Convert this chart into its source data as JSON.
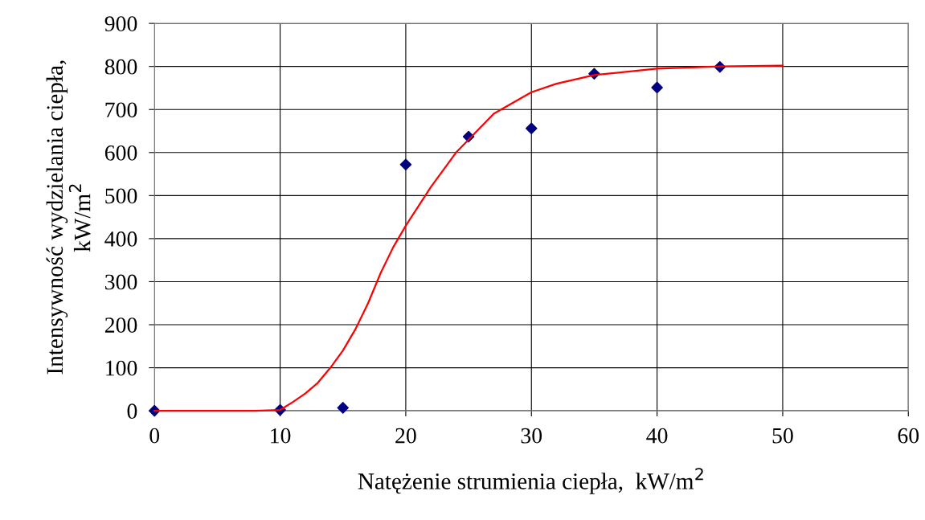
{
  "chart_data": {
    "type": "scatter",
    "xlabel": "Natężenie strumienia ciepła,  kW/m$^{2}$",
    "ylabel": "Intensywność wydzielania ciepła,\nkW/m$^{2}$",
    "xlim": [
      0,
      60
    ],
    "xticks": [
      0,
      10,
      20,
      30,
      40,
      50,
      60
    ],
    "ylim": [
      0,
      900
    ],
    "yticks": [
      0,
      100,
      200,
      300,
      400,
      500,
      600,
      700,
      800,
      900
    ],
    "grid": true,
    "marker": "diamond",
    "series": [
      {
        "color": "#000080",
        "x": [
          0,
          10,
          15,
          20,
          25,
          30,
          35,
          40,
          45
        ],
        "values": [
          0,
          2,
          7,
          572,
          637,
          656,
          783,
          751,
          799
        ]
      },
      {
        "type": "line",
        "color": "#ff0000",
        "marker": "none",
        "x": [
          0,
          3,
          5,
          8,
          10,
          11,
          12,
          13,
          14,
          15,
          16,
          17,
          18,
          19,
          20,
          22,
          24,
          25,
          27,
          30,
          32,
          35,
          40,
          45,
          50
        ],
        "values": [
          0,
          0,
          0,
          0,
          2,
          20,
          40,
          65,
          100,
          140,
          190,
          250,
          320,
          380,
          430,
          520,
          600,
          630,
          690,
          740,
          760,
          780,
          795,
          800,
          802
        ]
      }
    ]
  }
}
